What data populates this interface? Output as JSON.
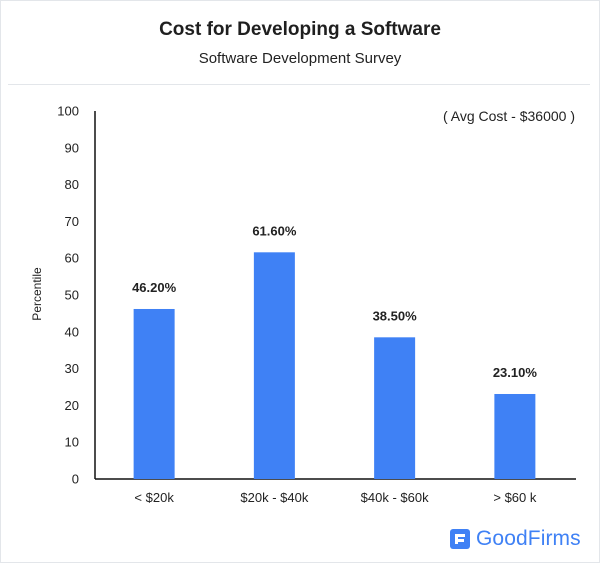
{
  "chart_data": {
    "type": "bar",
    "title": "Cost for Developing a Software",
    "subtitle": "Software Development Survey",
    "annotation": "( Avg Cost - $36000 )",
    "ylabel": "Percentile",
    "xlabel": "",
    "ylim": [
      0,
      100
    ],
    "yticks": [
      "0",
      "10",
      "20",
      "30",
      "40",
      "50",
      "60",
      "70",
      "80",
      "90",
      "100"
    ],
    "categories": [
      "< $20k",
      "$20k - $40k",
      "$40k - $60k",
      "> $60 k"
    ],
    "values": [
      46.2,
      61.6,
      38.5,
      23.1
    ],
    "data_labels": [
      "46.20%",
      "61.60%",
      "38.50%",
      "23.10%"
    ],
    "grid": false,
    "bar_color": "#3f81f5"
  },
  "brand": {
    "name": "GoodFirms",
    "color": "#3f81f5",
    "logo_icon": "goodfirms-logo-icon"
  }
}
